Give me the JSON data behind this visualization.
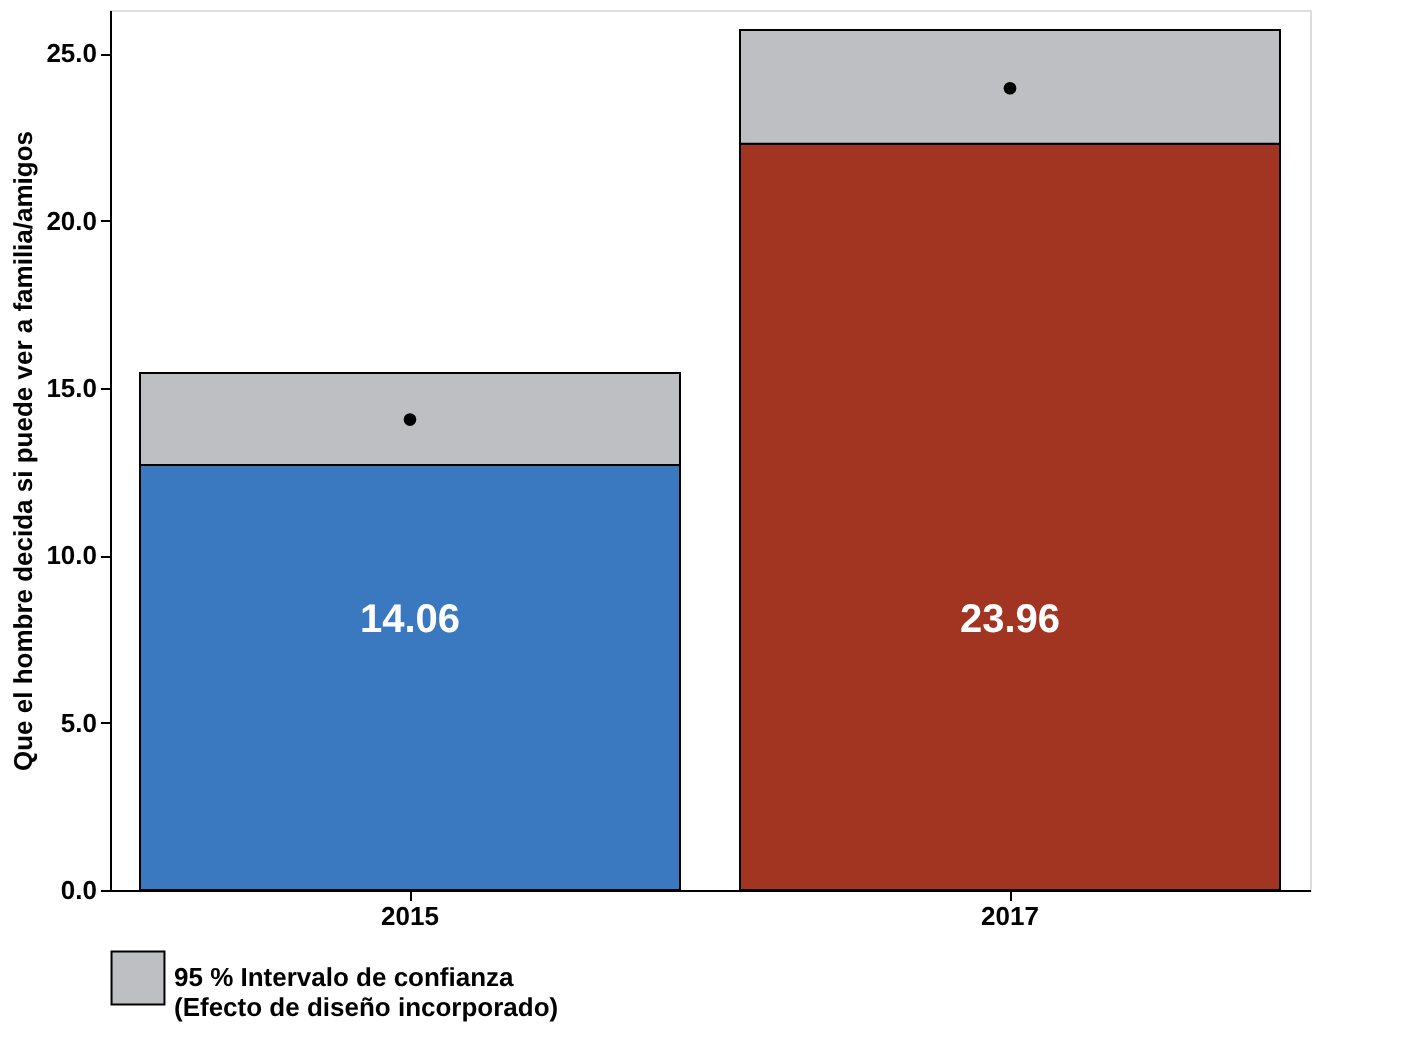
{
  "chart_data": {
    "type": "bar",
    "ylabel": "Que el hombre decida si puede ver a familia/amigos",
    "categories": [
      "2015",
      "2017"
    ],
    "stacked": true,
    "series": [
      {
        "colors": [
          "#3a78c0",
          "#a23522"
        ],
        "values": [
          12.7,
          22.3
        ]
      },
      {
        "name": "95 % Intervalo de confianza\n(Efecto de diseño incorporado)",
        "color": "#bebfc3",
        "values": [
          2.75,
          3.4
        ]
      },
      {
        "type": "scatter",
        "color": "#000000",
        "marker": "circle",
        "values": [
          14.06,
          23.96
        ]
      }
    ],
    "annotations": [
      "14.06",
      "23.96"
    ],
    "ylim": [
      0,
      26.3
    ],
    "yticks": [
      {
        "value": 0,
        "label": "0.0"
      },
      {
        "value": 5,
        "label": "5.0"
      },
      {
        "value": 10,
        "label": "10.0"
      },
      {
        "value": 15,
        "label": "15.0"
      },
      {
        "value": 20,
        "label": "20.0"
      },
      {
        "value": 25,
        "label": "25.0"
      }
    ],
    "grid": false,
    "legend": "bottom left"
  }
}
